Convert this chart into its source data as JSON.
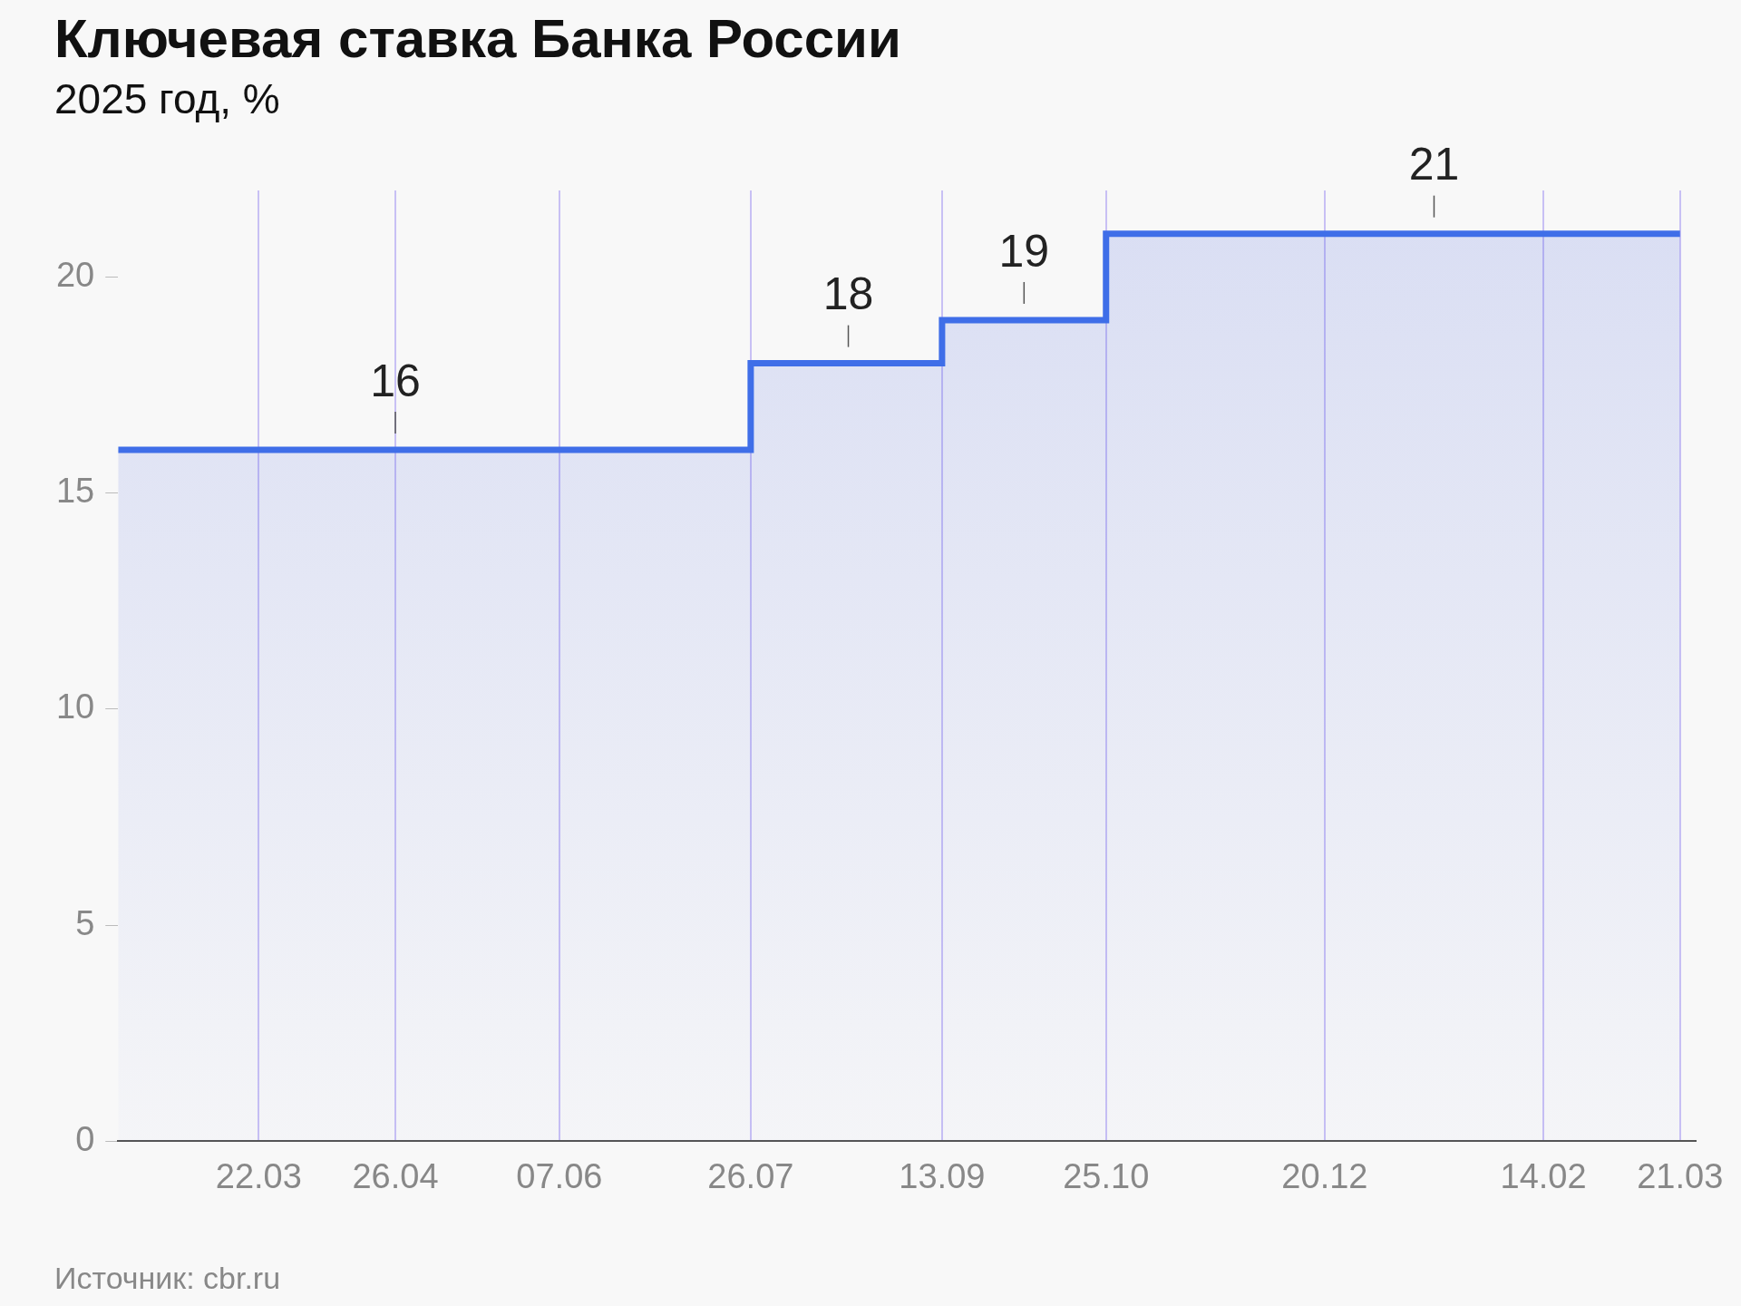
{
  "chart_data": {
    "type": "step",
    "title": "Ключевая ставка Банка России",
    "subtitle": "2025 год, %",
    "x": [
      "2025-02-14",
      "2025-04-26",
      "2025-07-26",
      "2025-08-20",
      "2025-09-13",
      "2025-10-04",
      "2025-10-25",
      "2026-01-17",
      "2026-03-21"
    ],
    "values": [
      16,
      16,
      18,
      18,
      19,
      19,
      21,
      21,
      21
    ],
    "color": "#3f6ee8",
    "value_labels": [
      null,
      "16",
      null,
      "18",
      null,
      "19",
      null,
      "21",
      null
    ],
    "xlim": [
      "2025-02-14",
      "2026-03-25"
    ],
    "xticks": [
      {
        "value": "2025-03-22",
        "label": "22.03"
      },
      {
        "value": "2025-04-26",
        "label": "26.04"
      },
      {
        "value": "2025-06-07",
        "label": "07.06"
      },
      {
        "value": "2025-07-26",
        "label": "26.07"
      },
      {
        "value": "2025-09-13",
        "label": "13.09"
      },
      {
        "value": "2025-10-25",
        "label": "25.10"
      },
      {
        "value": "2025-12-20",
        "label": "20.12"
      },
      {
        "value": "2026-02-14",
        "label": "14.02"
      },
      {
        "value": "2026-03-21",
        "label": "21.03"
      }
    ],
    "ylim": [
      0,
      22
    ],
    "yticks": [
      0,
      5,
      10,
      15,
      20
    ],
    "grid": "x",
    "marker": "none",
    "annotations": [
      "Источник: cbr.ru"
    ]
  }
}
